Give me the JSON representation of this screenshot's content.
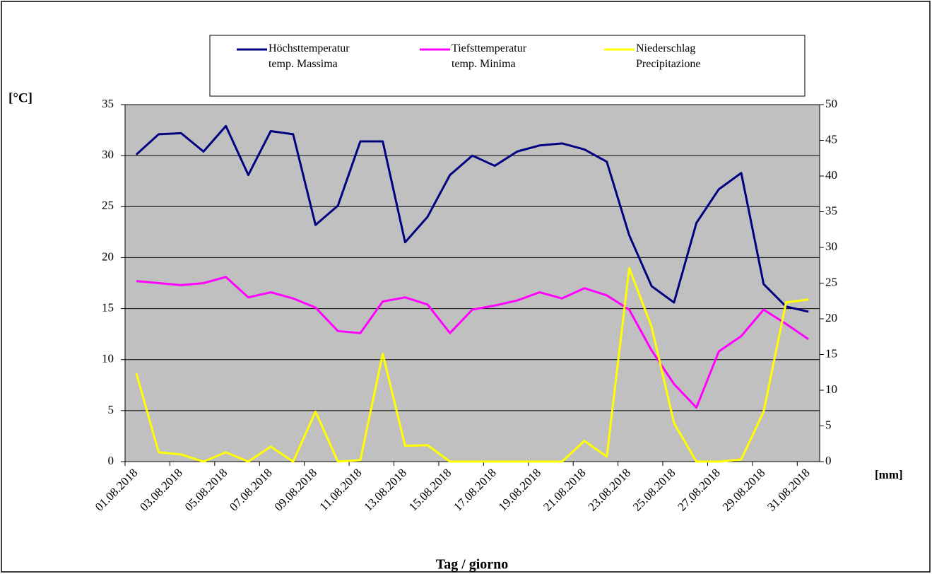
{
  "chart_data": {
    "type": "line",
    "y_label": "[°C]",
    "y2_label": "[mm]",
    "x_label": "Tag / giorno",
    "categories": [
      "01.08.2018",
      null,
      "03.08.2018",
      null,
      "05.08.2018",
      null,
      "07.08.2018",
      null,
      "09.08.2018",
      null,
      "11.08.2018",
      null,
      "13.08.2018",
      null,
      "15.08.2018",
      null,
      "17.08.2018",
      null,
      "19.08.2018",
      null,
      "21.08.2018",
      null,
      "23.08.2018",
      null,
      "25.08.2018",
      null,
      "27.08.2018",
      null,
      "29.08.2018",
      null,
      "31.08.2018"
    ],
    "series": [
      {
        "name": "Höchsttemperatur\ntemp. Massima",
        "color": "#000080",
        "values": [
          30.1,
          32.1,
          32.2,
          30.4,
          32.9,
          28.1,
          32.4,
          32.1,
          23.2,
          25.1,
          31.4,
          31.4,
          21.5,
          24.0,
          28.1,
          30.0,
          29.0,
          30.4,
          31.0,
          31.2,
          30.6,
          29.4,
          22.2,
          17.2,
          15.6,
          23.4,
          26.7,
          28.3,
          17.4,
          15.2,
          14.7
        ]
      },
      {
        "name": "Tiefsttemperatur\ntemp. Minima",
        "color": "#ff00ff",
        "values": [
          17.7,
          17.5,
          17.3,
          17.5,
          18.1,
          16.1,
          16.6,
          16.0,
          15.1,
          12.8,
          12.6,
          15.7,
          16.1,
          15.4,
          12.6,
          14.9,
          15.3,
          15.8,
          16.6,
          16.0,
          17.0,
          16.3,
          14.9,
          10.9,
          7.6,
          5.3,
          10.8,
          12.3,
          14.9,
          13.5,
          12.0
        ]
      },
      {
        "name": "Niederschlag\nPrecipitazione",
        "color": "#ffff00",
        "axis": "y2",
        "values": [
          12.4,
          1.3,
          1.0,
          0,
          1.3,
          0,
          2.1,
          0,
          7.0,
          0,
          0.2,
          15.1,
          2.2,
          2.3,
          0,
          0,
          0,
          0,
          0,
          0,
          2.9,
          0.7,
          27.1,
          18.9,
          5.4,
          0,
          0,
          0.3,
          7.0,
          22.3,
          22.7
        ]
      }
    ],
    "ylim": [
      0,
      35
    ],
    "yticks": [
      0,
      5,
      10,
      15,
      20,
      25,
      30,
      35
    ],
    "y2lim": [
      0,
      50
    ],
    "y2ticks": [
      0,
      5,
      10,
      15,
      20,
      25,
      30,
      35,
      40,
      45,
      50
    ],
    "grid": true,
    "plot_background": "#c0c0c0"
  }
}
